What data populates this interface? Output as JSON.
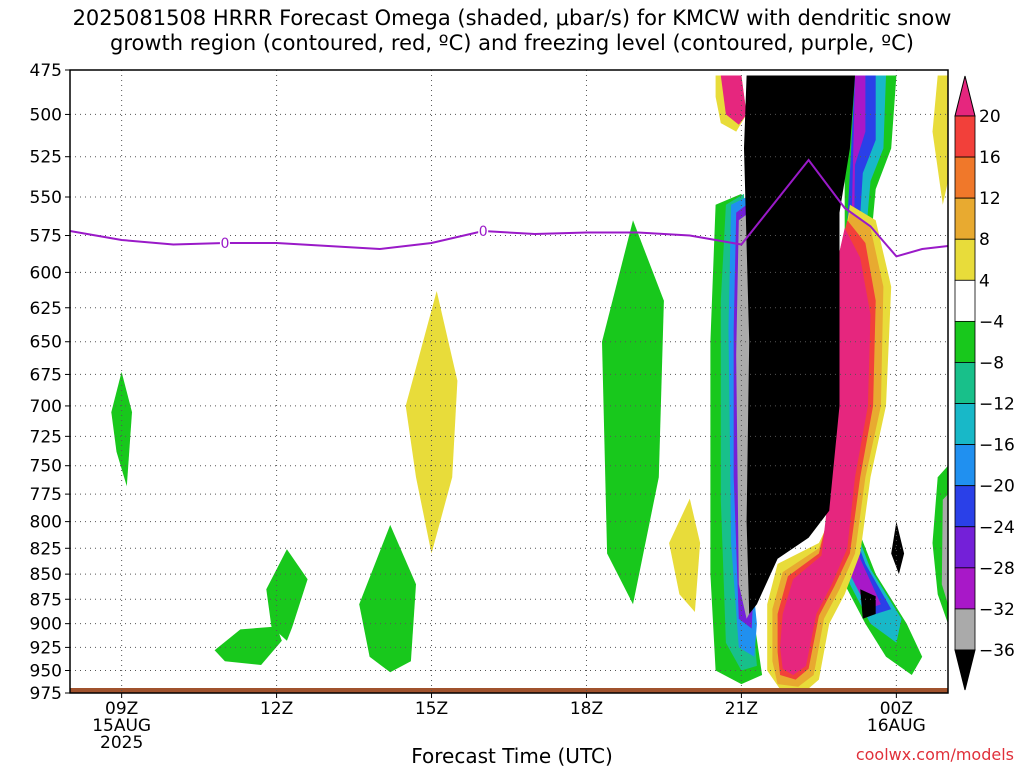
{
  "title_line1": "2025081508 HRRR Forecast Omega (shaded, μbar/s) for KMCW with dendritic snow",
  "title_line2": "growth region (contoured, red, ºC) and freezing level (contoured, purple, ºC)",
  "credit": "coolwx.com/models",
  "chart_data": {
    "type": "heatmap",
    "xlabel": "Forecast Time (UTC)",
    "x_ticks": [
      {
        "hour": 9,
        "label": "09Z",
        "sub": [
          "15AUG",
          "2025"
        ]
      },
      {
        "hour": 12,
        "label": "12Z",
        "sub": []
      },
      {
        "hour": 15,
        "label": "15Z",
        "sub": []
      },
      {
        "hour": 18,
        "label": "18Z",
        "sub": []
      },
      {
        "hour": 21,
        "label": "21Z",
        "sub": []
      },
      {
        "hour": 24,
        "label": "00Z",
        "sub": [
          "16AUG"
        ]
      }
    ],
    "xlim": [
      8,
      25
    ],
    "ylabel": "",
    "y_ticks": [
      475,
      500,
      525,
      550,
      575,
      600,
      625,
      650,
      675,
      700,
      725,
      750,
      775,
      800,
      825,
      850,
      875,
      900,
      925,
      950,
      975
    ],
    "ylim": [
      475,
      975
    ],
    "y_scale": "log-pressure",
    "grid": true,
    "colorbar": {
      "levels": [
        20,
        16,
        12,
        8,
        4,
        -4,
        -8,
        -12,
        -16,
        -20,
        -24,
        -28,
        -32,
        -36
      ],
      "colors": {
        "up_triangle": "#e6267e",
        "16to20": "#f2403a",
        "12to16": "#f0782a",
        "8to12": "#e8aa30",
        "4to8": "#e8dc3a",
        "m4to4": "#ffffff",
        "m8tom4": "#18c81c",
        "m12tom8": "#18c08a",
        "m16tom12": "#18b8c8",
        "m20tom16": "#2090f0",
        "m24tom20": "#2a40e8",
        "m28tom24": "#7420d8",
        "m32tom28": "#a818c8",
        "m36tom32": "#aaaaaa",
        "down_triangle": "#000000"
      }
    },
    "freezing_level": {
      "color": "#9a1ac8",
      "contour_label": "0",
      "points": [
        [
          8,
          572
        ],
        [
          9,
          578
        ],
        [
          10,
          581
        ],
        [
          11,
          580
        ],
        [
          12,
          580
        ],
        [
          13,
          582
        ],
        [
          14,
          584
        ],
        [
          15,
          580
        ],
        [
          16,
          572
        ],
        [
          17,
          574
        ],
        [
          18,
          573
        ],
        [
          19,
          573
        ],
        [
          20,
          575
        ],
        [
          21,
          581
        ],
        [
          22.3,
          527
        ],
        [
          23,
          557
        ],
        [
          23.5,
          569
        ],
        [
          24,
          589
        ],
        [
          24.5,
          584
        ],
        [
          25,
          582
        ]
      ],
      "label_positions": [
        [
          11,
          580
        ],
        [
          16,
          572
        ]
      ]
    },
    "omega_regions": [
      {
        "value": -6,
        "desc": "green",
        "points": [
          [
            9,
            673
          ],
          [
            9.2,
            705
          ],
          [
            9.1,
            768
          ],
          [
            8.9,
            738
          ],
          [
            8.8,
            705
          ]
        ]
      },
      {
        "value": -6,
        "points": [
          [
            11.3,
            906
          ],
          [
            12,
            903
          ],
          [
            12.1,
            918
          ],
          [
            11.7,
            944
          ],
          [
            11,
            940
          ],
          [
            10.8,
            928
          ]
        ]
      },
      {
        "value": -6,
        "points": [
          [
            12.2,
            826
          ],
          [
            12.6,
            855
          ],
          [
            12.3,
            904
          ],
          [
            12.2,
            918
          ],
          [
            11.9,
            903
          ],
          [
            11.8,
            865
          ]
        ]
      },
      {
        "value": -6,
        "points": [
          [
            14.2,
            803
          ],
          [
            14.7,
            860
          ],
          [
            14.6,
            940
          ],
          [
            14.2,
            952
          ],
          [
            13.8,
            935
          ],
          [
            13.6,
            880
          ]
        ]
      },
      {
        "value": 6,
        "points": [
          [
            15.1,
            613
          ],
          [
            15.5,
            680
          ],
          [
            15.4,
            760
          ],
          [
            15,
            830
          ],
          [
            14.7,
            760
          ],
          [
            14.5,
            700
          ]
        ]
      },
      {
        "value": -6,
        "points": [
          [
            18.9,
            565
          ],
          [
            19.5,
            620
          ],
          [
            19.4,
            760
          ],
          [
            18.9,
            880
          ],
          [
            18.4,
            830
          ],
          [
            18.3,
            650
          ]
        ]
      },
      {
        "value": 6,
        "points": [
          [
            20,
            779
          ],
          [
            20.2,
            820
          ],
          [
            20.1,
            888
          ],
          [
            19.8,
            870
          ],
          [
            19.6,
            820
          ]
        ]
      },
      {
        "value": 6,
        "points": [
          [
            25,
            478
          ],
          [
            25,
            540
          ],
          [
            24.9,
            555
          ],
          [
            24.7,
            510
          ],
          [
            24.8,
            478
          ]
        ]
      }
    ]
  }
}
